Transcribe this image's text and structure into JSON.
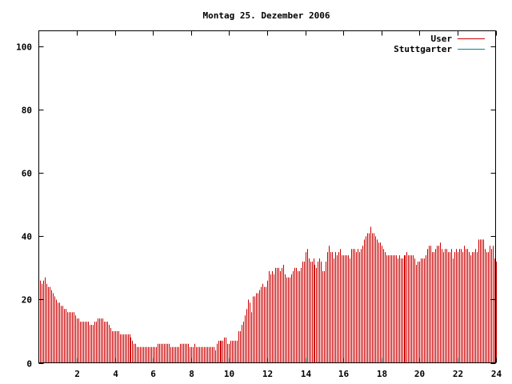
{
  "chart_data": {
    "type": "bar",
    "title": "Montag 25. Dezember 2006",
    "xlim": [
      0,
      24
    ],
    "ylim": [
      0,
      105
    ],
    "x_ticks": [
      2,
      4,
      6,
      8,
      10,
      12,
      14,
      16,
      18,
      20,
      22,
      24
    ],
    "y_ticks": [
      0,
      20,
      40,
      60,
      80,
      100
    ],
    "grid": false,
    "legend_position": "top-right",
    "series": [
      {
        "name": "User",
        "color": "#cc0000",
        "points": [
          [
            0.083,
            26
          ],
          [
            0.167,
            25
          ],
          [
            0.25,
            26
          ],
          [
            0.333,
            27
          ],
          [
            0.417,
            25
          ],
          [
            0.5,
            24
          ],
          [
            0.583,
            24
          ],
          [
            0.667,
            23
          ],
          [
            0.75,
            22
          ],
          [
            0.833,
            21
          ],
          [
            0.917,
            20
          ],
          [
            1.0,
            19
          ],
          [
            1.083,
            19
          ],
          [
            1.167,
            18
          ],
          [
            1.25,
            18
          ],
          [
            1.333,
            17
          ],
          [
            1.417,
            17
          ],
          [
            1.5,
            16
          ],
          [
            1.583,
            16
          ],
          [
            1.667,
            16
          ],
          [
            1.75,
            16
          ],
          [
            1.833,
            16
          ],
          [
            1.917,
            15
          ],
          [
            2.0,
            14
          ],
          [
            2.083,
            14
          ],
          [
            2.167,
            13
          ],
          [
            2.25,
            13
          ],
          [
            2.333,
            13
          ],
          [
            2.417,
            13
          ],
          [
            2.5,
            13
          ],
          [
            2.583,
            13
          ],
          [
            2.667,
            12
          ],
          [
            2.75,
            12
          ],
          [
            2.833,
            12
          ],
          [
            2.917,
            13
          ],
          [
            3.0,
            13
          ],
          [
            3.083,
            14
          ],
          [
            3.167,
            14
          ],
          [
            3.25,
            14
          ],
          [
            3.333,
            14
          ],
          [
            3.417,
            13
          ],
          [
            3.5,
            13
          ],
          [
            3.583,
            13
          ],
          [
            3.667,
            12
          ],
          [
            3.75,
            11
          ],
          [
            3.833,
            10
          ],
          [
            3.917,
            10
          ],
          [
            4.0,
            10
          ],
          [
            4.083,
            10
          ],
          [
            4.167,
            10
          ],
          [
            4.25,
            9
          ],
          [
            4.333,
            9
          ],
          [
            4.417,
            9
          ],
          [
            4.5,
            9
          ],
          [
            4.583,
            9
          ],
          [
            4.667,
            9
          ],
          [
            4.75,
            9
          ],
          [
            4.833,
            8
          ],
          [
            4.917,
            7
          ],
          [
            5.0,
            6
          ],
          [
            5.083,
            6
          ],
          [
            5.167,
            5
          ],
          [
            5.25,
            5
          ],
          [
            5.333,
            5
          ],
          [
            5.417,
            5
          ],
          [
            5.5,
            5
          ],
          [
            5.583,
            5
          ],
          [
            5.667,
            5
          ],
          [
            5.75,
            5
          ],
          [
            5.833,
            5
          ],
          [
            5.917,
            5
          ],
          [
            6.0,
            5
          ],
          [
            6.083,
            5
          ],
          [
            6.167,
            5
          ],
          [
            6.25,
            6
          ],
          [
            6.333,
            6
          ],
          [
            6.417,
            6
          ],
          [
            6.5,
            6
          ],
          [
            6.583,
            6
          ],
          [
            6.667,
            6
          ],
          [
            6.75,
            6
          ],
          [
            6.833,
            6
          ],
          [
            6.917,
            5
          ],
          [
            7.0,
            5
          ],
          [
            7.083,
            5
          ],
          [
            7.167,
            5
          ],
          [
            7.25,
            5
          ],
          [
            7.333,
            5
          ],
          [
            7.417,
            6
          ],
          [
            7.5,
            6
          ],
          [
            7.583,
            6
          ],
          [
            7.667,
            6
          ],
          [
            7.75,
            6
          ],
          [
            7.833,
            6
          ],
          [
            7.917,
            5
          ],
          [
            8.0,
            5
          ],
          [
            8.083,
            5
          ],
          [
            8.167,
            6
          ],
          [
            8.25,
            5
          ],
          [
            8.333,
            5
          ],
          [
            8.417,
            5
          ],
          [
            8.5,
            5
          ],
          [
            8.583,
            5
          ],
          [
            8.667,
            5
          ],
          [
            8.75,
            5
          ],
          [
            8.833,
            5
          ],
          [
            8.917,
            5
          ],
          [
            9.0,
            5
          ],
          [
            9.083,
            5
          ],
          [
            9.167,
            5
          ],
          [
            9.25,
            4
          ],
          [
            9.333,
            6
          ],
          [
            9.417,
            7
          ],
          [
            9.5,
            7
          ],
          [
            9.583,
            7
          ],
          [
            9.667,
            7
          ],
          [
            9.75,
            8
          ],
          [
            9.833,
            8
          ],
          [
            9.917,
            6
          ],
          [
            10.0,
            6
          ],
          [
            10.083,
            7
          ],
          [
            10.167,
            7
          ],
          [
            10.25,
            7
          ],
          [
            10.333,
            7
          ],
          [
            10.417,
            7
          ],
          [
            10.5,
            10
          ],
          [
            10.583,
            10
          ],
          [
            10.667,
            12
          ],
          [
            10.75,
            13
          ],
          [
            10.833,
            15
          ],
          [
            10.917,
            17
          ],
          [
            11.0,
            20
          ],
          [
            11.083,
            19
          ],
          [
            11.167,
            16
          ],
          [
            11.25,
            21
          ],
          [
            11.333,
            21
          ],
          [
            11.417,
            22
          ],
          [
            11.5,
            22
          ],
          [
            11.583,
            23
          ],
          [
            11.667,
            24
          ],
          [
            11.75,
            25
          ],
          [
            11.833,
            24
          ],
          [
            11.917,
            24
          ],
          [
            12.0,
            26
          ],
          [
            12.083,
            29
          ],
          [
            12.167,
            28
          ],
          [
            12.25,
            29
          ],
          [
            12.333,
            28
          ],
          [
            12.417,
            30
          ],
          [
            12.5,
            30
          ],
          [
            12.583,
            30
          ],
          [
            12.667,
            29
          ],
          [
            12.75,
            30
          ],
          [
            12.833,
            31
          ],
          [
            12.917,
            28
          ],
          [
            13.0,
            27
          ],
          [
            13.083,
            27
          ],
          [
            13.167,
            27
          ],
          [
            13.25,
            28
          ],
          [
            13.333,
            29
          ],
          [
            13.417,
            30
          ],
          [
            13.5,
            30
          ],
          [
            13.583,
            29
          ],
          [
            13.667,
            29
          ],
          [
            13.75,
            30
          ],
          [
            13.833,
            32
          ],
          [
            13.917,
            32
          ],
          [
            14.0,
            35
          ],
          [
            14.083,
            36
          ],
          [
            14.167,
            33
          ],
          [
            14.25,
            32
          ],
          [
            14.333,
            32
          ],
          [
            14.417,
            33
          ],
          [
            14.5,
            31
          ],
          [
            14.583,
            30
          ],
          [
            14.667,
            32
          ],
          [
            14.75,
            33
          ],
          [
            14.833,
            32
          ],
          [
            14.917,
            29
          ],
          [
            15.0,
            29
          ],
          [
            15.083,
            32
          ],
          [
            15.167,
            35
          ],
          [
            15.25,
            37
          ],
          [
            15.333,
            35
          ],
          [
            15.417,
            35
          ],
          [
            15.5,
            33
          ],
          [
            15.583,
            35
          ],
          [
            15.667,
            34
          ],
          [
            15.75,
            35
          ],
          [
            15.833,
            36
          ],
          [
            15.917,
            34
          ],
          [
            16.0,
            34
          ],
          [
            16.083,
            34
          ],
          [
            16.167,
            34
          ],
          [
            16.25,
            34
          ],
          [
            16.333,
            33
          ],
          [
            16.417,
            36
          ],
          [
            16.5,
            36
          ],
          [
            16.583,
            36
          ],
          [
            16.667,
            35
          ],
          [
            16.75,
            36
          ],
          [
            16.833,
            35
          ],
          [
            16.917,
            36
          ],
          [
            17.0,
            37
          ],
          [
            17.083,
            39
          ],
          [
            17.167,
            40
          ],
          [
            17.25,
            41
          ],
          [
            17.333,
            41
          ],
          [
            17.417,
            43
          ],
          [
            17.5,
            41
          ],
          [
            17.583,
            41
          ],
          [
            17.667,
            40
          ],
          [
            17.75,
            39
          ],
          [
            17.833,
            38
          ],
          [
            17.917,
            38
          ],
          [
            18.0,
            37
          ],
          [
            18.083,
            36
          ],
          [
            18.167,
            35
          ],
          [
            18.25,
            34
          ],
          [
            18.333,
            34
          ],
          [
            18.417,
            34
          ],
          [
            18.5,
            34
          ],
          [
            18.583,
            34
          ],
          [
            18.667,
            34
          ],
          [
            18.75,
            34
          ],
          [
            18.833,
            33
          ],
          [
            18.917,
            34
          ],
          [
            19.0,
            33
          ],
          [
            19.083,
            33
          ],
          [
            19.167,
            34
          ],
          [
            19.25,
            34
          ],
          [
            19.333,
            35
          ],
          [
            19.417,
            34
          ],
          [
            19.5,
            34
          ],
          [
            19.583,
            34
          ],
          [
            19.667,
            34
          ],
          [
            19.75,
            33
          ],
          [
            19.833,
            31
          ],
          [
            19.917,
            32
          ],
          [
            20.0,
            32
          ],
          [
            20.083,
            33
          ],
          [
            20.167,
            33
          ],
          [
            20.25,
            33
          ],
          [
            20.333,
            34
          ],
          [
            20.417,
            36
          ],
          [
            20.5,
            37
          ],
          [
            20.583,
            37
          ],
          [
            20.667,
            35
          ],
          [
            20.75,
            35
          ],
          [
            20.833,
            36
          ],
          [
            20.917,
            37
          ],
          [
            21.0,
            37
          ],
          [
            21.083,
            38
          ],
          [
            21.167,
            36
          ],
          [
            21.25,
            35
          ],
          [
            21.333,
            36
          ],
          [
            21.417,
            36
          ],
          [
            21.5,
            35
          ],
          [
            21.583,
            35
          ],
          [
            21.667,
            36
          ],
          [
            21.75,
            33
          ],
          [
            21.833,
            35
          ],
          [
            21.917,
            36
          ],
          [
            22.0,
            35
          ],
          [
            22.083,
            36
          ],
          [
            22.167,
            36
          ],
          [
            22.25,
            35
          ],
          [
            22.333,
            37
          ],
          [
            22.417,
            36
          ],
          [
            22.5,
            36
          ],
          [
            22.583,
            35
          ],
          [
            22.667,
            34
          ],
          [
            22.75,
            35
          ],
          [
            22.833,
            35
          ],
          [
            22.917,
            36
          ],
          [
            23.0,
            35
          ],
          [
            23.083,
            39
          ],
          [
            23.167,
            39
          ],
          [
            23.25,
            39
          ],
          [
            23.333,
            39
          ],
          [
            23.417,
            36
          ],
          [
            23.5,
            35
          ],
          [
            23.583,
            35
          ],
          [
            23.667,
            37
          ],
          [
            23.75,
            36
          ],
          [
            23.833,
            37
          ],
          [
            23.917,
            33
          ],
          [
            24.0,
            32
          ]
        ]
      },
      {
        "name": "Stuttgarter",
        "color": "#008b8b",
        "points": []
      }
    ]
  }
}
